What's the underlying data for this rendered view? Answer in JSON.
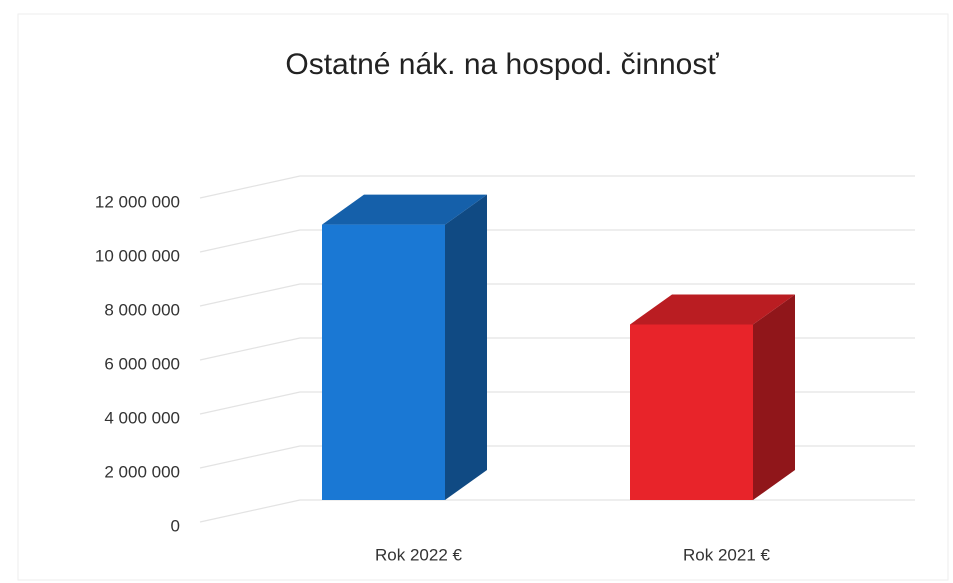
{
  "chart_data": {
    "type": "bar3d",
    "title": "Ostatné nák. na hospod. činnosť",
    "categories": [
      "Rok 2022 €",
      "Rok 2021 €"
    ],
    "values": [
      10200000,
      6500000
    ],
    "colors": [
      "#1a78d4",
      "#e8242a"
    ],
    "ylim": [
      0,
      12000000
    ],
    "yticks": [
      {
        "value": 0,
        "label": "0"
      },
      {
        "value": 2000000,
        "label": "2 000 000"
      },
      {
        "value": 4000000,
        "label": "4 000 000"
      },
      {
        "value": 6000000,
        "label": "6 000 000"
      },
      {
        "value": 8000000,
        "label": "8 000 000"
      },
      {
        "value": 10000000,
        "label": "10 000 000"
      },
      {
        "value": 12000000,
        "label": "12 000 000"
      }
    ],
    "grid": true
  }
}
